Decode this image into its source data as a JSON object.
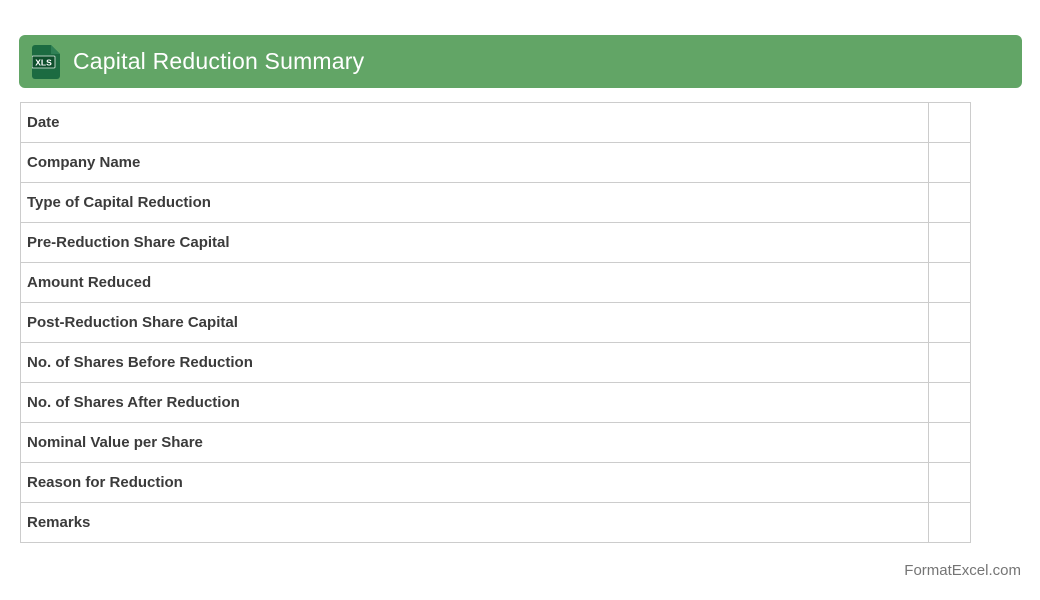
{
  "header": {
    "title": "Capital Reduction Summary",
    "icon_label": "XLS",
    "banner_color": "#62a566",
    "icon_doc_color": "#1c6b41",
    "icon_fold_color": "#2f8055",
    "icon_badge_color": "#0e4f2c"
  },
  "table": {
    "rows": [
      {
        "label": "Date",
        "value": ""
      },
      {
        "label": "Company Name",
        "value": ""
      },
      {
        "label": "Type of Capital Reduction",
        "value": ""
      },
      {
        "label": "Pre-Reduction Share Capital",
        "value": ""
      },
      {
        "label": "Amount Reduced",
        "value": ""
      },
      {
        "label": "Post-Reduction Share Capital",
        "value": ""
      },
      {
        "label": "No. of Shares Before Reduction",
        "value": ""
      },
      {
        "label": "No. of Shares After Reduction",
        "value": ""
      },
      {
        "label": "Nominal Value per Share",
        "value": ""
      },
      {
        "label": "Reason for Reduction",
        "value": ""
      },
      {
        "label": "Remarks",
        "value": ""
      }
    ]
  },
  "footer": {
    "credit": "FormatExcel.com"
  },
  "colors": {
    "row_label_text": "#3b3b3b",
    "table_border": "#cccccc",
    "footer_text": "#757575"
  }
}
